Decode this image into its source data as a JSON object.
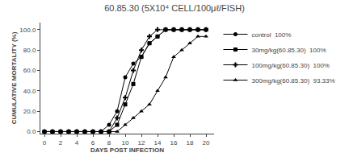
{
  "chart_data": {
    "type": "line",
    "title": "60.85.30 (5X10⁴ CELL/100μℓ/FISH)",
    "xlabel": "DAYS POST INFECTION",
    "ylabel": "CUMULATIVE MORTALITY (%)",
    "xlim": [
      -0.5,
      21
    ],
    "ylim": [
      -2,
      107
    ],
    "xticks": [
      0,
      2,
      4,
      6,
      8,
      10,
      12,
      14,
      16,
      18,
      20
    ],
    "yticks": [
      {
        "value": 0,
        "label": "0.0"
      },
      {
        "value": 20,
        "label": "20.0"
      },
      {
        "value": 40,
        "label": "40.0"
      },
      {
        "value": 60,
        "label": "60.0"
      },
      {
        "value": 80,
        "label": "80.0"
      },
      {
        "value": 100,
        "label": "100.0"
      }
    ],
    "grid": false,
    "legend": "right",
    "x": [
      0,
      1,
      2,
      3,
      4,
      5,
      6,
      7,
      8,
      9,
      10,
      11,
      12,
      13,
      14,
      15,
      16,
      17,
      18,
      19,
      20
    ],
    "series": [
      {
        "name": "control",
        "pct": "100%",
        "marker": "circle",
        "color": "#000000",
        "values": [
          0,
          0,
          0,
          0,
          0,
          0,
          0,
          0,
          6.67,
          20,
          53.33,
          66.67,
          73.33,
          86.67,
          93.33,
          100,
          100,
          100,
          100,
          100,
          100
        ]
      },
      {
        "name": "30mg/kg(60.85.30)",
        "pct": "100%",
        "marker": "square",
        "color": "#000000",
        "values": [
          0,
          0,
          0,
          0,
          0,
          0,
          0,
          0,
          0,
          6.67,
          26.67,
          46.67,
          73.33,
          86.67,
          93.33,
          100,
          100,
          100,
          100,
          100,
          100
        ]
      },
      {
        "name": "100mg/kg(60.85.30)",
        "pct": "100%",
        "marker": "cross",
        "color": "#000000",
        "values": [
          0,
          0,
          0,
          0,
          0,
          0,
          0,
          0,
          0,
          13.33,
          33.33,
          60,
          80,
          93.33,
          100,
          100,
          100,
          100,
          100,
          100,
          100
        ]
      },
      {
        "name": "300mg/kg(60.85.30)",
        "pct": "93.33%",
        "marker": "triangle-up",
        "color": "#000000",
        "values": [
          0,
          0,
          0,
          0,
          0,
          0,
          0,
          0,
          0,
          0,
          6.67,
          13.33,
          20,
          26.67,
          40,
          53.33,
          73.33,
          80,
          86.67,
          93.33,
          93.33
        ]
      }
    ]
  }
}
